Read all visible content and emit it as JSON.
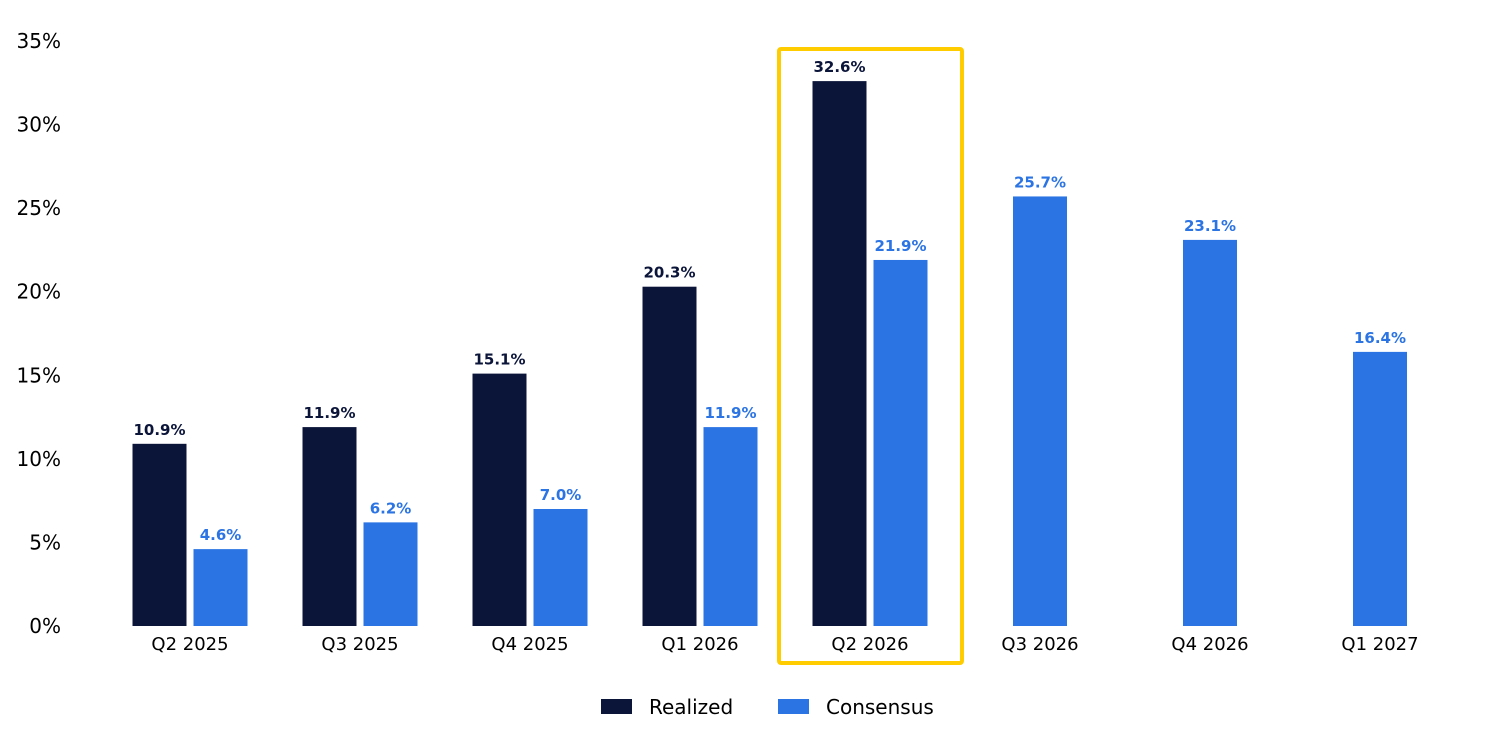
{
  "chart_data": {
    "type": "bar",
    "categories": [
      "Q2 2025",
      "Q3 2025",
      "Q4 2025",
      "Q1 2026",
      "Q2 2026",
      "Q3 2026",
      "Q4 2026",
      "Q1 2027"
    ],
    "series": [
      {
        "name": "Realized",
        "color": "#0b1439",
        "values": [
          10.9,
          11.9,
          15.1,
          20.3,
          32.6,
          null,
          null,
          null
        ],
        "labels": [
          "10.9%",
          "11.9%",
          "15.1%",
          "20.3%",
          "32.6%",
          null,
          null,
          null
        ]
      },
      {
        "name": "Consensus",
        "color": "#2b74e4",
        "values": [
          4.6,
          6.2,
          7.0,
          11.9,
          21.9,
          25.7,
          23.1,
          16.4
        ],
        "labels": [
          "4.6%",
          "6.2%",
          "7.0%",
          "11.9%",
          "21.9%",
          "25.7%",
          "23.1%",
          "16.4%"
        ]
      }
    ],
    "yticks": [
      "0%",
      "5%",
      "10%",
      "15%",
      "20%",
      "25%",
      "30%",
      "35%"
    ],
    "ylim": [
      0,
      35
    ],
    "grid": false,
    "legend_position": "bottom-center",
    "highlight": {
      "category": "Q2 2026",
      "color": "#ffcc00"
    },
    "title": "",
    "xlabel": "",
    "ylabel": ""
  }
}
